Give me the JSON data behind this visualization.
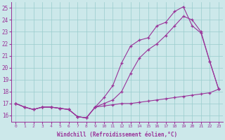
{
  "x": [
    0,
    1,
    2,
    3,
    4,
    5,
    6,
    7,
    8,
    9,
    10,
    11,
    12,
    13,
    14,
    15,
    16,
    17,
    18,
    19,
    20,
    21,
    22,
    23
  ],
  "line1_y": [
    17.0,
    16.7,
    16.5,
    16.7,
    16.7,
    16.6,
    16.5,
    15.9,
    15.8,
    16.7,
    17.5,
    18.5,
    20.4,
    21.8,
    22.3,
    22.5,
    23.5,
    23.8,
    24.7,
    25.1,
    23.5,
    22.9,
    20.5,
    18.2
  ],
  "line2_y": [
    17.0,
    16.7,
    16.5,
    16.7,
    16.7,
    16.6,
    16.5,
    15.9,
    15.8,
    16.7,
    17.0,
    17.3,
    18.0,
    19.5,
    20.8,
    21.5,
    22.0,
    22.7,
    23.5,
    24.3,
    24.0,
    23.0,
    20.5,
    18.2
  ],
  "line3_y": [
    17.0,
    16.7,
    16.5,
    16.7,
    16.7,
    16.6,
    16.5,
    15.9,
    15.8,
    16.7,
    16.8,
    16.9,
    17.0,
    17.0,
    17.1,
    17.2,
    17.3,
    17.4,
    17.5,
    17.6,
    17.7,
    17.8,
    17.9,
    18.2
  ],
  "bg_color": "#cce8ea",
  "line_color": "#993399",
  "xlabel": "Windchill (Refroidissement éolien,°C)",
  "ylim": [
    15.5,
    25.5
  ],
  "xlim": [
    -0.5,
    23.5
  ],
  "yticks": [
    16,
    17,
    18,
    19,
    20,
    21,
    22,
    23,
    24,
    25
  ],
  "xticks": [
    0,
    1,
    2,
    3,
    4,
    5,
    6,
    7,
    8,
    9,
    10,
    11,
    12,
    13,
    14,
    15,
    16,
    17,
    18,
    19,
    20,
    21,
    22,
    23
  ]
}
